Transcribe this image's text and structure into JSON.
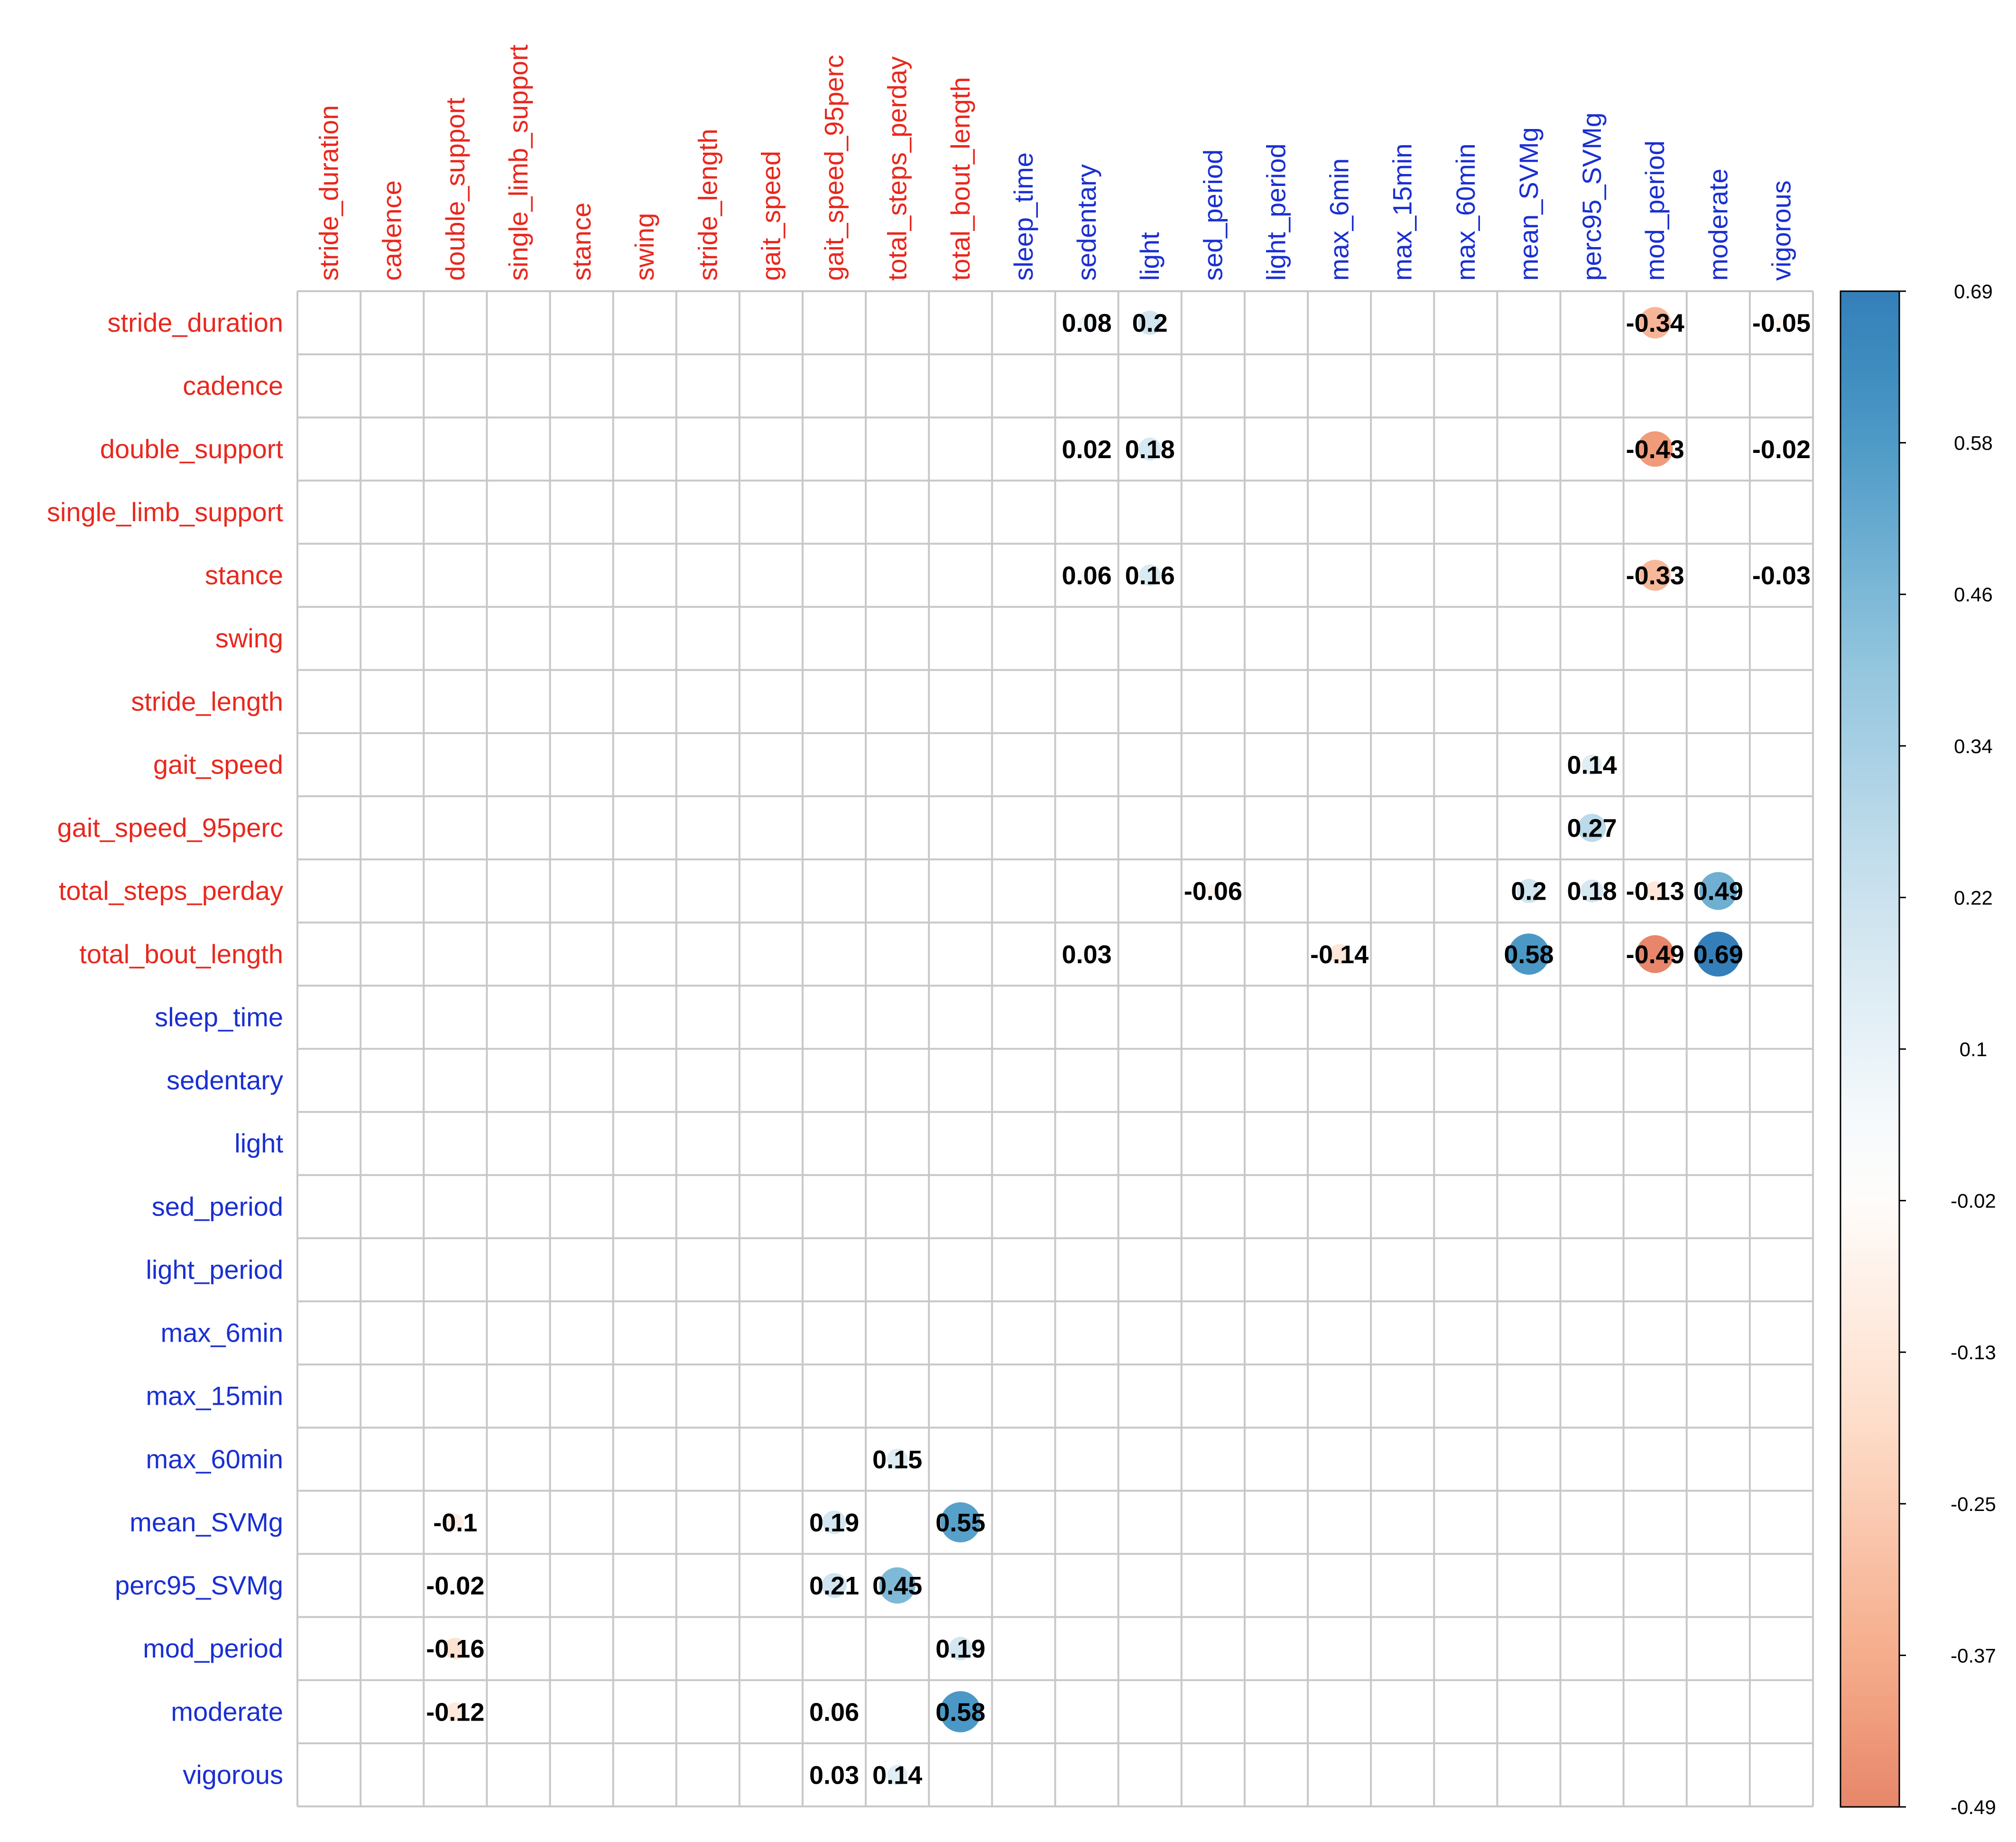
{
  "chart_data": {
    "type": "heatmap",
    "style": "corrplot-circle",
    "variables": [
      "stride_duration",
      "cadence",
      "double_support",
      "single_limb_support",
      "stance",
      "swing",
      "stride_length",
      "gait_speed",
      "gait_speed_95perc",
      "total_steps_perday",
      "total_bout_length",
      "sleep_time",
      "sedentary",
      "light",
      "sed_period",
      "light_period",
      "max_6min",
      "max_15min",
      "max_60min",
      "mean_SVMg",
      "perc95_SVMg",
      "mod_period",
      "moderate",
      "vigorous"
    ],
    "group_colors": {
      "gait": "#e8281e",
      "activity": "#1a2fd1"
    },
    "gait_variables": [
      "stride_duration",
      "cadence",
      "double_support",
      "single_limb_support",
      "stance",
      "swing",
      "stride_length",
      "gait_speed",
      "gait_speed_95perc",
      "total_steps_perday",
      "total_bout_length"
    ],
    "cells": [
      {
        "row": "stride_duration",
        "col": "sedentary",
        "value": 0.08,
        "label": "0.08"
      },
      {
        "row": "stride_duration",
        "col": "light",
        "value": 0.2,
        "label": "0.2"
      },
      {
        "row": "stride_duration",
        "col": "mod_period",
        "value": -0.34,
        "label": "-0.34"
      },
      {
        "row": "stride_duration",
        "col": "vigorous",
        "value": -0.05,
        "label": "-0.05"
      },
      {
        "row": "double_support",
        "col": "sedentary",
        "value": 0.02,
        "label": "0.02"
      },
      {
        "row": "double_support",
        "col": "light",
        "value": 0.18,
        "label": "0.18"
      },
      {
        "row": "double_support",
        "col": "mod_period",
        "value": -0.43,
        "label": "-0.43"
      },
      {
        "row": "double_support",
        "col": "vigorous",
        "value": -0.02,
        "label": "-0.02"
      },
      {
        "row": "stance",
        "col": "sedentary",
        "value": 0.06,
        "label": "0.06"
      },
      {
        "row": "stance",
        "col": "light",
        "value": 0.16,
        "label": "0.16"
      },
      {
        "row": "stance",
        "col": "mod_period",
        "value": -0.33,
        "label": "-0.33"
      },
      {
        "row": "stance",
        "col": "vigorous",
        "value": -0.03,
        "label": "-0.03"
      },
      {
        "row": "gait_speed",
        "col": "perc95_SVMg",
        "value": 0.14,
        "label": "0.14"
      },
      {
        "row": "gait_speed_95perc",
        "col": "perc95_SVMg",
        "value": 0.27,
        "label": "0.27"
      },
      {
        "row": "total_steps_perday",
        "col": "sed_period",
        "value": -0.06,
        "label": "-0.06"
      },
      {
        "row": "total_steps_perday",
        "col": "mean_SVMg",
        "value": 0.2,
        "label": "0.2"
      },
      {
        "row": "total_steps_perday",
        "col": "perc95_SVMg",
        "value": 0.18,
        "label": "0.18"
      },
      {
        "row": "total_steps_perday",
        "col": "mod_period",
        "value": -0.13,
        "label": "-0.13"
      },
      {
        "row": "total_steps_perday",
        "col": "moderate",
        "value": 0.49,
        "label": "0.49"
      },
      {
        "row": "total_bout_length",
        "col": "sedentary",
        "value": 0.03,
        "label": "0.03"
      },
      {
        "row": "total_bout_length",
        "col": "max_6min",
        "value": -0.14,
        "label": "-0.14"
      },
      {
        "row": "total_bout_length",
        "col": "mean_SVMg",
        "value": 0.58,
        "label": "0.58"
      },
      {
        "row": "total_bout_length",
        "col": "mod_period",
        "value": -0.49,
        "label": "-0.49"
      },
      {
        "row": "total_bout_length",
        "col": "moderate",
        "value": 0.69,
        "label": "0.69"
      },
      {
        "row": "max_60min",
        "col": "total_steps_perday",
        "value": 0.15,
        "label": "0.15"
      },
      {
        "row": "mean_SVMg",
        "col": "double_support",
        "value": -0.1,
        "label": "-0.1"
      },
      {
        "row": "mean_SVMg",
        "col": "gait_speed_95perc",
        "value": 0.19,
        "label": "0.19"
      },
      {
        "row": "mean_SVMg",
        "col": "total_bout_length",
        "value": 0.55,
        "label": "0.55"
      },
      {
        "row": "perc95_SVMg",
        "col": "double_support",
        "value": -0.02,
        "label": "-0.02"
      },
      {
        "row": "perc95_SVMg",
        "col": "gait_speed_95perc",
        "value": 0.21,
        "label": "0.21"
      },
      {
        "row": "perc95_SVMg",
        "col": "total_steps_perday",
        "value": 0.45,
        "label": "0.45"
      },
      {
        "row": "mod_period",
        "col": "double_support",
        "value": -0.16,
        "label": "-0.16"
      },
      {
        "row": "mod_period",
        "col": "total_bout_length",
        "value": 0.19,
        "label": "0.19"
      },
      {
        "row": "moderate",
        "col": "double_support",
        "value": -0.12,
        "label": "-0.12"
      },
      {
        "row": "moderate",
        "col": "gait_speed_95perc",
        "value": 0.06,
        "label": "0.06"
      },
      {
        "row": "moderate",
        "col": "total_bout_length",
        "value": 0.58,
        "label": "0.58"
      },
      {
        "row": "vigorous",
        "col": "gait_speed_95perc",
        "value": 0.03,
        "label": "0.03"
      },
      {
        "row": "vigorous",
        "col": "total_steps_perday",
        "value": 0.14,
        "label": "0.14"
      }
    ],
    "colorbar": {
      "min": -0.49,
      "max": 0.69,
      "tick_labels": [
        "0.69",
        "0.58",
        "0.46",
        "0.34",
        "0.22",
        "0.1",
        "-0.02",
        "-0.13",
        "-0.25",
        "-0.37",
        "-0.49"
      ],
      "colors": [
        "#67001f",
        "#b2182b",
        "#d6604d",
        "#f4a582",
        "#fddbc7",
        "#ffffff",
        "#d1e5f0",
        "#92c5de",
        "#4393c3",
        "#2166ac",
        "#053061"
      ],
      "placement": "right"
    },
    "grid": true
  }
}
